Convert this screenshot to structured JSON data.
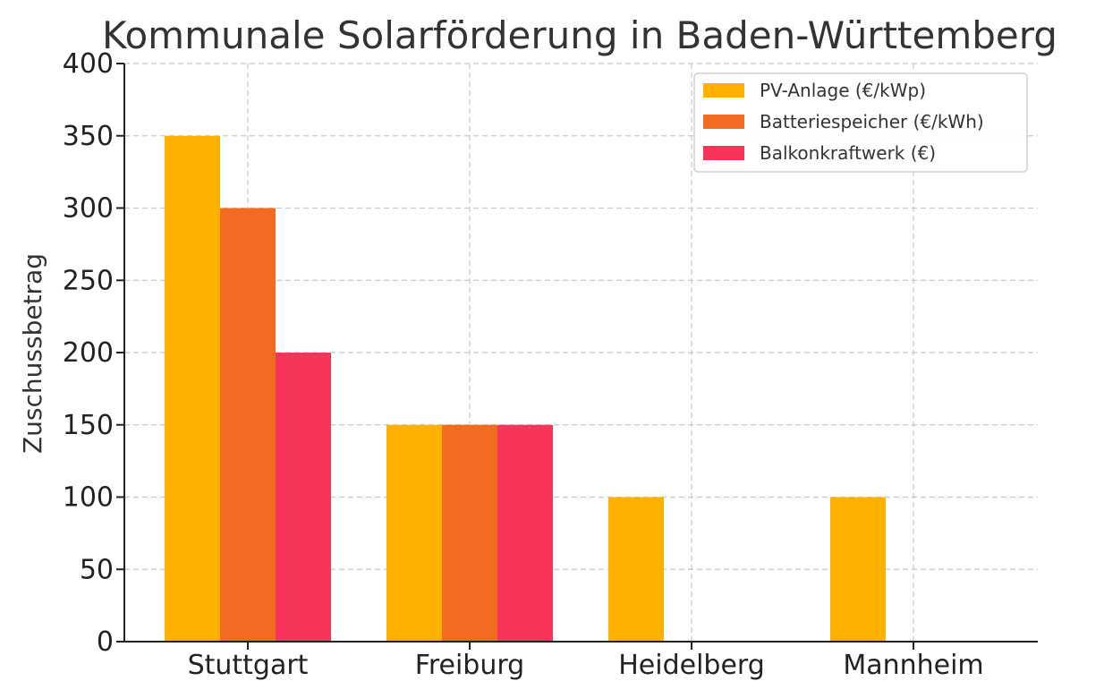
{
  "chart_data": {
    "type": "bar",
    "title": "Kommunale Solarförderung in Baden-Württemberg",
    "xlabel": "",
    "ylabel": "Zuschussbetrag",
    "categories": [
      "Stuttgart",
      "Freiburg",
      "Heidelberg",
      "Mannheim"
    ],
    "series": [
      {
        "name": "PV-Anlage (€/kWp)",
        "values": [
          350,
          150,
          100,
          100
        ],
        "color": "#FFB000"
      },
      {
        "name": "Batteriespeicher (€/kWh)",
        "values": [
          300,
          150,
          0,
          0
        ],
        "color": "#F26B21"
      },
      {
        "name": "Balkonkraftwerk (€)",
        "values": [
          200,
          150,
          0,
          0
        ],
        "color": "#F7345A"
      }
    ],
    "ylim": [
      0,
      400
    ],
    "yticks": [
      0,
      50,
      100,
      150,
      200,
      250,
      300,
      350,
      400
    ],
    "grid": true,
    "legend": "top-right"
  }
}
